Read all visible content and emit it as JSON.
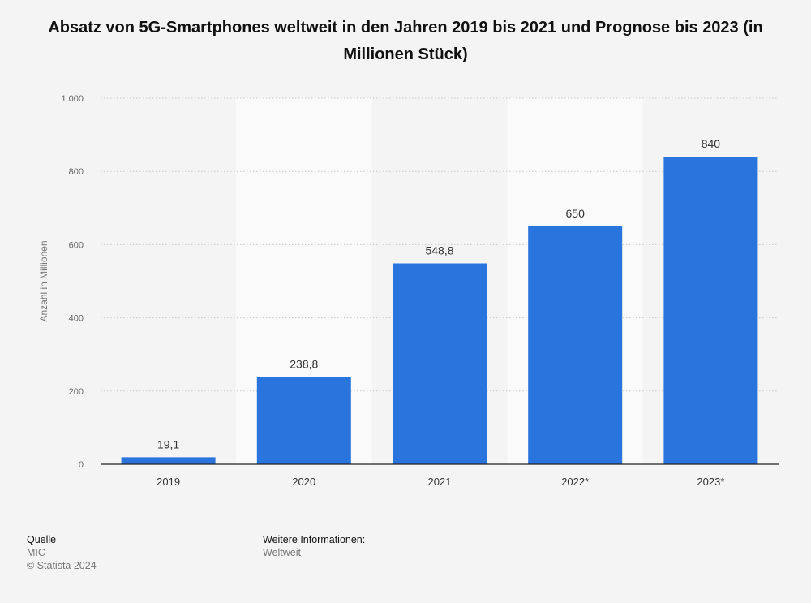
{
  "chart_data": {
    "type": "bar",
    "title": "Absatz von 5G-Smartphones weltweit in den Jahren 2019 bis 2021 und Prognose bis 2023 (in Millionen Stück)",
    "ylabel": "Anzahl in Millionen",
    "xlabel": "",
    "categories": [
      "2019",
      "2020",
      "2021",
      "2022*",
      "2023*"
    ],
    "values": [
      19.1,
      238.8,
      548.8,
      650,
      840
    ],
    "value_labels": [
      "19,1",
      "238,8",
      "548,8",
      "650",
      "840"
    ],
    "ylim": [
      0,
      1000
    ],
    "yticks": [
      0,
      200,
      400,
      600,
      800,
      1000
    ],
    "ytick_labels": [
      "0",
      "200",
      "400",
      "600",
      "800",
      "1.000"
    ],
    "grid": true,
    "bar_color": "#2a74dd"
  },
  "footer": {
    "source_heading": "Quelle",
    "source": "MIC",
    "copyright": "© Statista 2024",
    "info_heading": "Weitere Informationen:",
    "info": "Weltweit"
  }
}
